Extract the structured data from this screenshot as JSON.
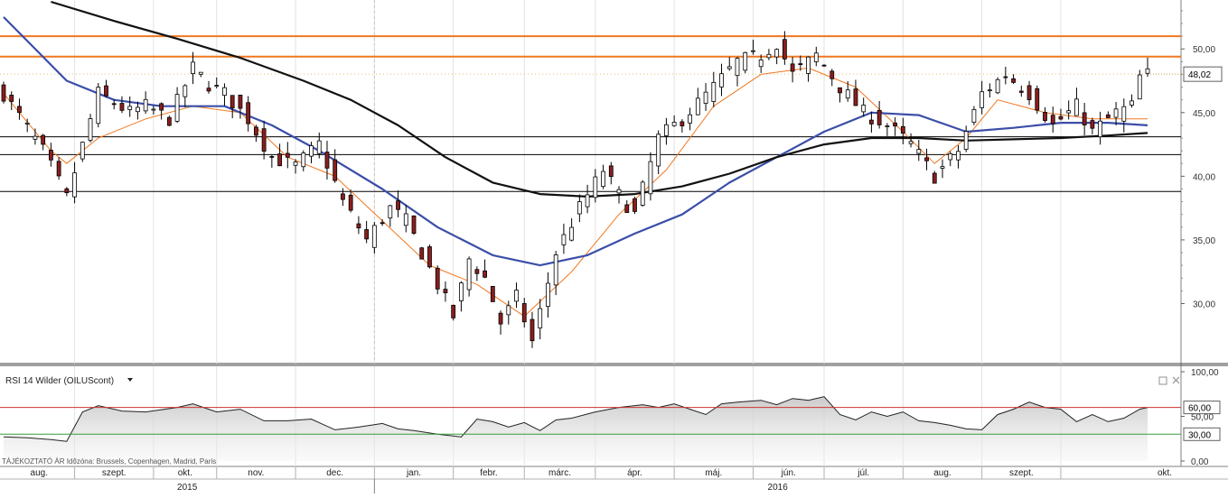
{
  "colors": {
    "background": "#ffffff",
    "candle_up": "#ffffff",
    "candle_down": "#8b1e1e",
    "candle_outline": "#000000",
    "ma_fast": "#f07820",
    "ma_medium": "#3a4ea8",
    "ma_slow": "#111111",
    "resistance": "#f07820",
    "support": "#000000",
    "rsi_line": "#222222",
    "rsi_fill": "#c8c8c8",
    "rsi_upper": "#d03030",
    "rsi_lower": "#3a9a3a",
    "last_price_box": "#ffffff"
  },
  "rsi_panel": {
    "title": "RSI 14 Wilder (OILUScont)",
    "dropdown_icon": "triangle-down-icon",
    "restore_icon": "window-restore-icon",
    "close_icon": "close-icon"
  },
  "footer": {
    "info_text": "TÁJÉKOZTATÓ ÁR   Időzóna: Brussels, Copenhagen, Madrid, Paris"
  },
  "chart_data": [
    {
      "type": "candlestick",
      "title": "",
      "xlabel": "",
      "ylabel": "",
      "ylim": [
        25.5,
        53.7
      ],
      "y_ticks": [
        "30,00",
        "35,00",
        "40,00",
        "45,00",
        "50,00"
      ],
      "y_tick_values": [
        30,
        35,
        40,
        45,
        50
      ],
      "last_price": "48,02",
      "last_price_value": 48.02,
      "x_months": [
        "aug.",
        "szept.",
        "okt.",
        "nov.",
        "dec.",
        "jan.",
        "febr.",
        "márc.",
        "ápr.",
        "máj.",
        "jún.",
        "júl.",
        "aug.",
        "szept.",
        "okt."
      ],
      "x_years": [
        "2015",
        "2016"
      ],
      "horizontal_lines": {
        "resistance": [
          51.0,
          49.4
        ],
        "support": [
          43.1,
          41.7,
          38.8
        ]
      },
      "price_path": [
        [
          0,
          46.5
        ],
        [
          5,
          42.0
        ],
        [
          8,
          38.3
        ],
        [
          12,
          46.5
        ],
        [
          16,
          45.0
        ],
        [
          18,
          45.5
        ],
        [
          21,
          44.5
        ],
        [
          24,
          48.5
        ],
        [
          26,
          47.2
        ],
        [
          28,
          46.5
        ],
        [
          31,
          44.5
        ],
        [
          34,
          41.5
        ],
        [
          37,
          40.8
        ],
        [
          40,
          42.5
        ],
        [
          43,
          38.0
        ],
        [
          46,
          35.0
        ],
        [
          49,
          37.5
        ],
        [
          51,
          36.5
        ],
        [
          53,
          34.0
        ],
        [
          57,
          29.0
        ],
        [
          59,
          33.5
        ],
        [
          61,
          32.0
        ],
        [
          63,
          28.5
        ],
        [
          65,
          30.5
        ],
        [
          67,
          27.0
        ],
        [
          70,
          34.0
        ],
        [
          73,
          37.5
        ],
        [
          76,
          40.5
        ],
        [
          78,
          38.5
        ],
        [
          80,
          37.0
        ],
        [
          83,
          43.0
        ],
        [
          86,
          44.5
        ],
        [
          90,
          47.0
        ],
        [
          93,
          49.0
        ],
        [
          96,
          49.5
        ],
        [
          98,
          50.5
        ],
        [
          100,
          48.0
        ],
        [
          103,
          49.5
        ],
        [
          106,
          47.0
        ],
        [
          109,
          45.0
        ],
        [
          112,
          44.0
        ],
        [
          115,
          42.5
        ],
        [
          118,
          40.0
        ],
        [
          121,
          42.0
        ],
        [
          124,
          46.5
        ],
        [
          127,
          48.0
        ],
        [
          130,
          46.5
        ],
        [
          133,
          44.0
        ],
        [
          136,
          45.5
        ],
        [
          138,
          43.5
        ],
        [
          141,
          45.0
        ],
        [
          143,
          45.5
        ],
        [
          144,
          47.8
        ],
        [
          145,
          48.0
        ]
      ],
      "moving_averages": [
        {
          "name": "MA fast",
          "color_key": "ma_fast",
          "points": [
            [
              0,
              46.5
            ],
            [
              6,
              42.0
            ],
            [
              8,
              41.0
            ],
            [
              12,
              43.0
            ],
            [
              18,
              44.5
            ],
            [
              24,
              45.5
            ],
            [
              30,
              45.0
            ],
            [
              36,
              41.5
            ],
            [
              42,
              40.0
            ],
            [
              48,
              36.5
            ],
            [
              54,
              33.0
            ],
            [
              60,
              31.5
            ],
            [
              66,
              29.0
            ],
            [
              72,
              32.5
            ],
            [
              78,
              37.0
            ],
            [
              84,
              40.5
            ],
            [
              90,
              45.5
            ],
            [
              96,
              48.0
            ],
            [
              102,
              48.5
            ],
            [
              108,
              47.0
            ],
            [
              114,
              43.5
            ],
            [
              118,
              41.0
            ],
            [
              122,
              43.0
            ],
            [
              126,
              46.0
            ],
            [
              132,
              45.0
            ],
            [
              138,
              44.5
            ],
            [
              145,
              44.5
            ]
          ]
        },
        {
          "name": "MA medium",
          "color_key": "ma_medium",
          "points": [
            [
              0,
              52.5
            ],
            [
              8,
              47.5
            ],
            [
              14,
              46.0
            ],
            [
              20,
              45.5
            ],
            [
              28,
              45.5
            ],
            [
              34,
              44.0
            ],
            [
              40,
              42.0
            ],
            [
              48,
              39.0
            ],
            [
              55,
              36.0
            ],
            [
              62,
              33.8
            ],
            [
              68,
              33.0
            ],
            [
              74,
              33.8
            ],
            [
              80,
              35.5
            ],
            [
              86,
              37.0
            ],
            [
              92,
              39.5
            ],
            [
              98,
              41.5
            ],
            [
              104,
              43.5
            ],
            [
              110,
              45.0
            ],
            [
              116,
              44.8
            ],
            [
              122,
              43.5
            ],
            [
              128,
              43.8
            ],
            [
              134,
              44.2
            ],
            [
              140,
              44.2
            ],
            [
              145,
              44.0
            ]
          ]
        },
        {
          "name": "MA slow",
          "color_key": "ma_slow",
          "points": [
            [
              6,
              53.7
            ],
            [
              14,
              52.2
            ],
            [
              22,
              50.8
            ],
            [
              30,
              49.3
            ],
            [
              38,
              47.5
            ],
            [
              44,
              46.0
            ],
            [
              50,
              44.0
            ],
            [
              56,
              41.5
            ],
            [
              62,
              39.5
            ],
            [
              68,
              38.6
            ],
            [
              74,
              38.4
            ],
            [
              80,
              38.6
            ],
            [
              86,
              39.2
            ],
            [
              92,
              40.2
            ],
            [
              98,
              41.5
            ],
            [
              104,
              42.5
            ],
            [
              110,
              43.0
            ],
            [
              116,
              43.0
            ],
            [
              122,
              42.8
            ],
            [
              128,
              42.9
            ],
            [
              134,
              43.0
            ],
            [
              140,
              43.2
            ],
            [
              145,
              43.4
            ]
          ]
        }
      ]
    },
    {
      "type": "line",
      "title": "RSI 14 Wilder (OILUScont)",
      "ylim": [
        0,
        100
      ],
      "y_ticks": [
        "0,00",
        "50,00",
        "100,00"
      ],
      "y_tick_values": [
        0,
        50,
        100
      ],
      "levels": [
        {
          "label": "60,00",
          "value": 60,
          "color_key": "rsi_upper"
        },
        {
          "label": "30,00",
          "value": 30,
          "color_key": "rsi_lower"
        }
      ],
      "points": [
        [
          0,
          27
        ],
        [
          3,
          26
        ],
        [
          6,
          24
        ],
        [
          8,
          22
        ],
        [
          10,
          55
        ],
        [
          12,
          62
        ],
        [
          15,
          56
        ],
        [
          18,
          55
        ],
        [
          22,
          60
        ],
        [
          24,
          64
        ],
        [
          27,
          55
        ],
        [
          30,
          58
        ],
        [
          33,
          45
        ],
        [
          36,
          45
        ],
        [
          39,
          47
        ],
        [
          42,
          35
        ],
        [
          45,
          38
        ],
        [
          48,
          42
        ],
        [
          50,
          36
        ],
        [
          52,
          34
        ],
        [
          55,
          30
        ],
        [
          58,
          27
        ],
        [
          60,
          47
        ],
        [
          62,
          44
        ],
        [
          64,
          38
        ],
        [
          66,
          43
        ],
        [
          68,
          34
        ],
        [
          70,
          46
        ],
        [
          72,
          48
        ],
        [
          75,
          55
        ],
        [
          78,
          60
        ],
        [
          81,
          63
        ],
        [
          83,
          60
        ],
        [
          85,
          64
        ],
        [
          87,
          58
        ],
        [
          89,
          52
        ],
        [
          91,
          64
        ],
        [
          93,
          66
        ],
        [
          96,
          68
        ],
        [
          98,
          63
        ],
        [
          100,
          70
        ],
        [
          102,
          68
        ],
        [
          104,
          72
        ],
        [
          106,
          52
        ],
        [
          108,
          46
        ],
        [
          110,
          55
        ],
        [
          112,
          50
        ],
        [
          114,
          55
        ],
        [
          116,
          45
        ],
        [
          118,
          43
        ],
        [
          120,
          40
        ],
        [
          122,
          36
        ],
        [
          124,
          35
        ],
        [
          126,
          52
        ],
        [
          128,
          58
        ],
        [
          130,
          66
        ],
        [
          132,
          60
        ],
        [
          134,
          58
        ],
        [
          136,
          44
        ],
        [
          138,
          52
        ],
        [
          140,
          44
        ],
        [
          142,
          48
        ],
        [
          144,
          58
        ],
        [
          145,
          60
        ]
      ]
    }
  ]
}
